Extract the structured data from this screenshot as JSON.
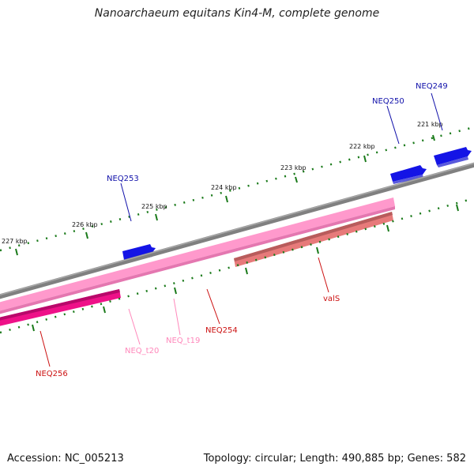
{
  "title": "Nanoarchaeum equitans Kin4-M, complete genome",
  "footer": {
    "accession": "Accession: NC_005213",
    "summary": "Topology: circular; Length: 490,885 bp; Genes: 582"
  },
  "colors": {
    "backbone": "#808080",
    "tick": "#1a7a1a",
    "cds_forward": "#1414e6",
    "rrna": "#ff99cc",
    "trna_label": "#ff88bb",
    "cds_reverse": "#ee1188",
    "valS": "#e77a7a",
    "label_red": "#cc1111",
    "label_blue": "#1111aa",
    "label_pink": "#ff88bb"
  },
  "kbp_labels": [
    "221 kbp",
    "222 kbp",
    "223 kbp",
    "224 kbp",
    "225 kbp",
    "226 kbp",
    "227 kbp"
  ],
  "genes": [
    {
      "label": "NEQ249",
      "color": "label_blue"
    },
    {
      "label": "NEQ250",
      "color": "label_blue"
    },
    {
      "label": "NEQ253",
      "color": "label_blue"
    },
    {
      "label": "valS",
      "color": "label_red"
    },
    {
      "label": "NEQ254",
      "color": "label_red"
    },
    {
      "label": "NEQ_t19",
      "color": "label_pink"
    },
    {
      "label": "NEQ_t20",
      "color": "label_pink"
    },
    {
      "label": "NEQ256",
      "color": "label_red"
    }
  ]
}
